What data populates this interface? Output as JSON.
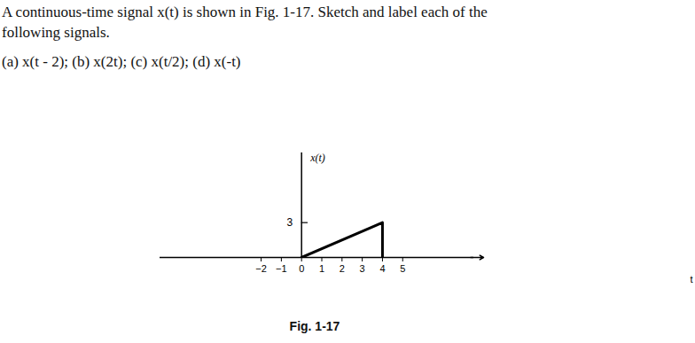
{
  "problem": {
    "lines": [
      "A continuous-time signal x(t) is shown in Fig. 1-17. Sketch and label each of the",
      "following signals."
    ],
    "parts": "(a) x(t - 2); (b) x(2t); (c) x(t/2); (d) x(-t)"
  },
  "chart_data": {
    "type": "line",
    "caption": "Fig. 1-17",
    "x_label": "t",
    "y_label": "x(t)",
    "x": [
      0,
      4,
      4
    ],
    "values": [
      0,
      3,
      0
    ],
    "color": "#000000",
    "xlim": [
      -7,
      9
    ],
    "ylim": [
      0,
      9
    ],
    "xticks": [
      -2,
      -1,
      0,
      1,
      2,
      3,
      4,
      5
    ],
    "yticks": [
      3
    ]
  }
}
